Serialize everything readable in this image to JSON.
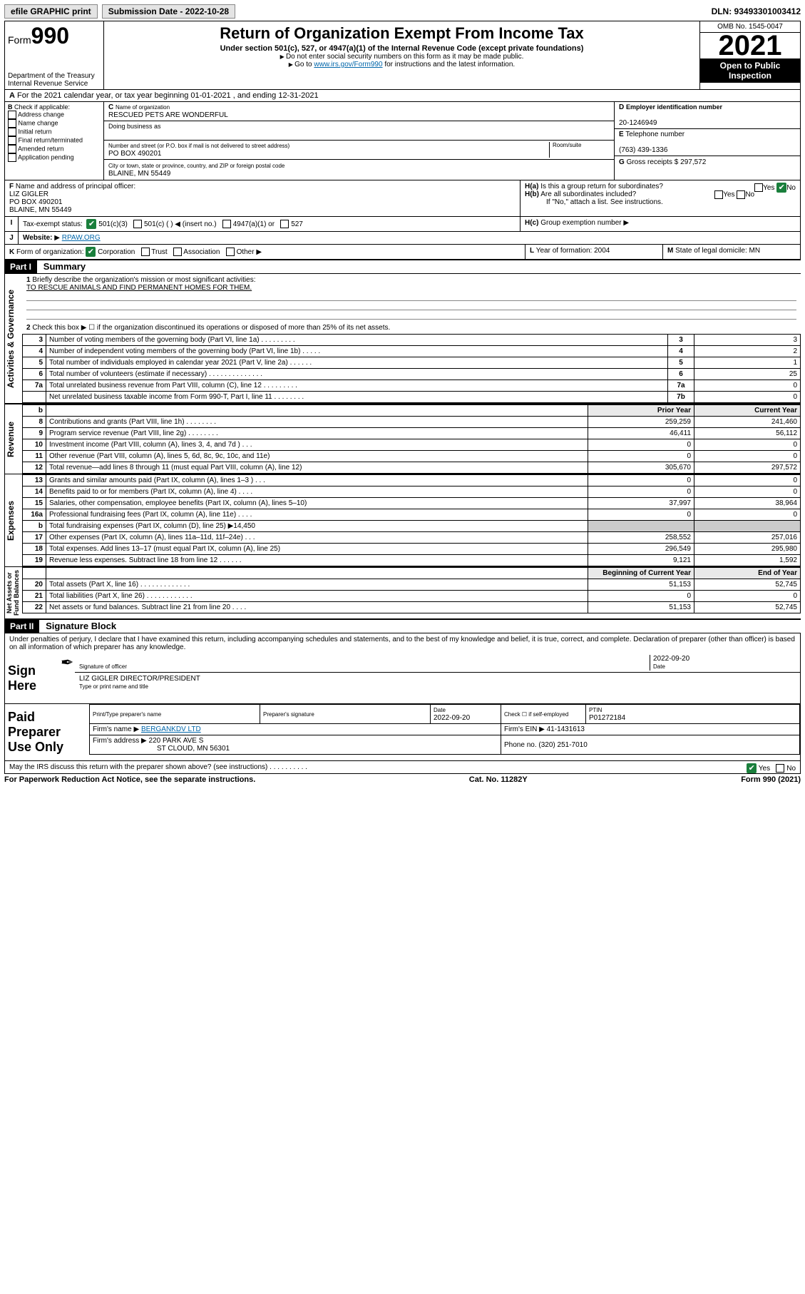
{
  "topbar": {
    "efile_label": "efile GRAPHIC print",
    "sub_label": "Submission Date - 2022-10-28",
    "dln": "DLN: 93493301003412"
  },
  "header": {
    "form_word": "Form",
    "form_num": "990",
    "dept": "Department of the Treasury",
    "irs": "Internal Revenue Service",
    "title": "Return of Organization Exempt From Income Tax",
    "sub": "Under section 501(c), 527, or 4947(a)(1) of the Internal Revenue Code (except private foundations)",
    "note1": "Do not enter social security numbers on this form as it may be made public.",
    "note2_pre": "Go to ",
    "note2_link": "www.irs.gov/Form990",
    "note2_post": " for instructions and the latest information.",
    "omb": "OMB No. 1545-0047",
    "year": "2021",
    "open": "Open to Public Inspection"
  },
  "A": {
    "text": "For the 2021 calendar year, or tax year beginning 01-01-2021   , and ending 12-31-2021"
  },
  "B": {
    "label": "Check if applicable:",
    "items": [
      "Address change",
      "Name change",
      "Initial return",
      "Final return/terminated",
      "Amended return",
      "Application pending"
    ]
  },
  "C": {
    "name_lbl": "Name of organization",
    "name": "RESCUED PETS ARE WONDERFUL",
    "dba_lbl": "Doing business as",
    "dba": "",
    "street_lbl": "Number and street (or P.O. box if mail is not delivered to street address)",
    "room_lbl": "Room/suite",
    "street": "PO BOX 490201",
    "city_lbl": "City or town, state or province, country, and ZIP or foreign postal code",
    "city": "BLAINE, MN  55449"
  },
  "D": {
    "lbl": "Employer identification number",
    "ein": "20-1246949"
  },
  "E": {
    "lbl": "Telephone number",
    "phone": "(763) 439-1336"
  },
  "G": {
    "lbl": "Gross receipts $",
    "amt": "297,572"
  },
  "F": {
    "lbl": "Name and address of principal officer:",
    "name": "LIZ GIGLER",
    "addr1": "PO BOX 490201",
    "addr2": "BLAINE, MN  55449"
  },
  "H": {
    "a": "Is this a group return for subordinates?",
    "b": "Are all subordinates included?",
    "b_note": "If \"No,\" attach a list. See instructions.",
    "c": "Group exemption number"
  },
  "I": {
    "lbl": "Tax-exempt status:",
    "opt1": "501(c)(3)",
    "opt2": "501(c) (   ) ◀ (insert no.)",
    "opt3": "4947(a)(1) or",
    "opt4": "527"
  },
  "J": {
    "lbl": "Website:",
    "val": "RPAW.ORG"
  },
  "K": {
    "lbl": "Form of organization:",
    "opts": [
      "Corporation",
      "Trust",
      "Association",
      "Other"
    ]
  },
  "L": {
    "lbl": "Year of formation:",
    "val": "2004"
  },
  "M": {
    "lbl": "State of legal domicile:",
    "val": "MN"
  },
  "part1": {
    "hdr": "Part I",
    "title": "Summary",
    "q1": "Briefly describe the organization's mission or most significant activities:",
    "mission": "TO RESCUE ANIMALS AND FIND PERMANENT HOMES FOR THEM.",
    "q2": "Check this box ▶ ☐  if the organization discontinued its operations or disposed of more than 25% of its net assets.",
    "rows_gov": [
      {
        "n": "3",
        "t": "Number of voting members of the governing body (Part VI, line 1a)   .   .   .   .   .   .   .   .   .",
        "k": "3",
        "v": "3"
      },
      {
        "n": "4",
        "t": "Number of independent voting members of the governing body (Part VI, line 1b)  .   .   .   .   .",
        "k": "4",
        "v": "2"
      },
      {
        "n": "5",
        "t": "Total number of individuals employed in calendar year 2021 (Part V, line 2a)   .   .   .   .   .   .",
        "k": "5",
        "v": "1"
      },
      {
        "n": "6",
        "t": "Total number of volunteers (estimate if necessary)   .   .   .   .   .   .   .   .   .   .   .   .   .   .",
        "k": "6",
        "v": "25"
      },
      {
        "n": "7a",
        "t": "Total unrelated business revenue from Part VIII, column (C), line 12  .   .   .   .   .   .   .   .   .",
        "k": "7a",
        "v": "0"
      },
      {
        "n": "",
        "t": "Net unrelated business taxable income from Form 990-T, Part I, line 11  .   .   .   .   .   .   .   .",
        "k": "7b",
        "v": "0"
      }
    ],
    "col_prior": "Prior Year",
    "col_curr": "Current Year",
    "rows_rev": [
      {
        "n": "8",
        "t": "Contributions and grants (Part VIII, line 1h)   .   .   .   .   .   .   .   .",
        "p": "259,259",
        "c": "241,460"
      },
      {
        "n": "9",
        "t": "Program service revenue (Part VIII, line 2g)   .   .   .   .   .   .   .   .",
        "p": "46,411",
        "c": "56,112"
      },
      {
        "n": "10",
        "t": "Investment income (Part VIII, column (A), lines 3, 4, and 7d )   .   .   .",
        "p": "0",
        "c": "0"
      },
      {
        "n": "11",
        "t": "Other revenue (Part VIII, column (A), lines 5, 6d, 8c, 9c, 10c, and 11e)",
        "p": "0",
        "c": "0"
      },
      {
        "n": "12",
        "t": "Total revenue—add lines 8 through 11 (must equal Part VIII, column (A), line 12)",
        "p": "305,670",
        "c": "297,572"
      }
    ],
    "rows_exp": [
      {
        "n": "13",
        "t": "Grants and similar amounts paid (Part IX, column (A), lines 1–3 )   .   .   .",
        "p": "0",
        "c": "0"
      },
      {
        "n": "14",
        "t": "Benefits paid to or for members (Part IX, column (A), line 4)   .   .   .   .",
        "p": "0",
        "c": "0"
      },
      {
        "n": "15",
        "t": "Salaries, other compensation, employee benefits (Part IX, column (A), lines 5–10)",
        "p": "37,997",
        "c": "38,964"
      },
      {
        "n": "16a",
        "t": "Professional fundraising fees (Part IX, column (A), line 11e)   .   .   .   .",
        "p": "0",
        "c": "0"
      },
      {
        "n": "b",
        "t": "Total fundraising expenses (Part IX, column (D), line 25) ▶14,450",
        "p": "",
        "c": "",
        "shade": true
      },
      {
        "n": "17",
        "t": "Other expenses (Part IX, column (A), lines 11a–11d, 11f–24e)   .   .   .",
        "p": "258,552",
        "c": "257,016"
      },
      {
        "n": "18",
        "t": "Total expenses. Add lines 13–17 (must equal Part IX, column (A), line 25)",
        "p": "296,549",
        "c": "295,980"
      },
      {
        "n": "19",
        "t": "Revenue less expenses. Subtract line 18 from line 12   .   .   .   .   .   .",
        "p": "9,121",
        "c": "1,592"
      }
    ],
    "col_begin": "Beginning of Current Year",
    "col_end": "End of Year",
    "rows_net": [
      {
        "n": "20",
        "t": "Total assets (Part X, line 16)   .   .   .   .   .   .   .   .   .   .   .   .   .",
        "p": "51,153",
        "c": "52,745"
      },
      {
        "n": "21",
        "t": "Total liabilities (Part X, line 26)   .   .   .   .   .   .   .   .   .   .   .   .",
        "p": "0",
        "c": "0"
      },
      {
        "n": "22",
        "t": "Net assets or fund balances. Subtract line 21 from line 20   .   .   .   .",
        "p": "51,153",
        "c": "52,745"
      }
    ]
  },
  "part2": {
    "hdr": "Part II",
    "title": "Signature Block",
    "perjury": "Under penalties of perjury, I declare that I have examined this return, including accompanying schedules and statements, and to the best of my knowledge and belief, it is true, correct, and complete. Declaration of preparer (other than officer) is based on all information of which preparer has any knowledge."
  },
  "sign": {
    "here": "Sign Here",
    "sig_officer": "Signature of officer",
    "date_lbl": "Date",
    "date": "2022-09-20",
    "name": "LIZ GIGLER  DIRECTOR/PRESIDENT",
    "name_lbl": "Type or print name and title"
  },
  "paid": {
    "lbl": "Paid Preparer Use Only",
    "cols": [
      "Print/Type preparer's name",
      "Preparer's signature",
      "Date",
      "",
      "PTIN"
    ],
    "date": "2022-09-20",
    "check_lbl": "Check ☐ if self-employed",
    "ptin": "P01272184",
    "firm_name_lbl": "Firm's name   ▶",
    "firm_name": "BERGANKDV LTD",
    "firm_ein_lbl": "Firm's EIN ▶",
    "firm_ein": "41-1431613",
    "firm_addr_lbl": "Firm's address ▶",
    "firm_addr1": "220 PARK AVE S",
    "firm_addr2": "ST CLOUD, MN  56301",
    "phone_lbl": "Phone no.",
    "phone": "(320) 251-7010"
  },
  "discuss": "May the IRS discuss this return with the preparer shown above? (see instructions)   .   .   .   .   .   .   .   .   .   .",
  "footer": {
    "left": "For Paperwork Reduction Act Notice, see the separate instructions.",
    "mid": "Cat. No. 11282Y",
    "right": "Form 990 (2021)"
  },
  "colors": {
    "link": "#0066aa",
    "check": "#1a7f3c"
  }
}
